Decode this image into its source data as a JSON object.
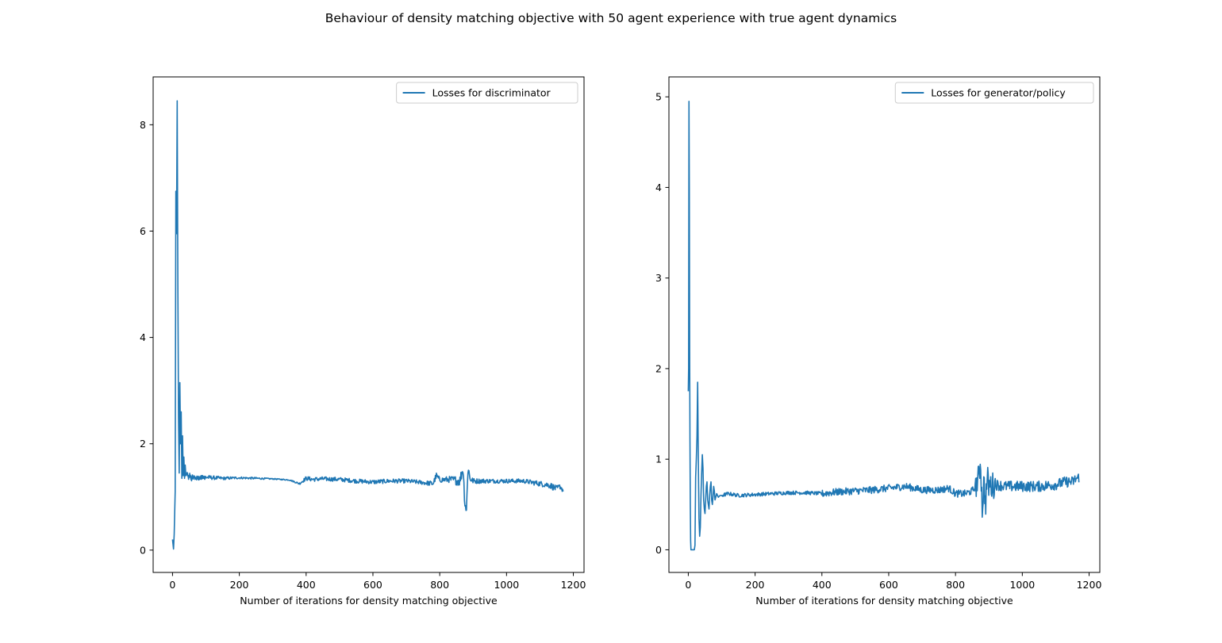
{
  "figure": {
    "suptitle": "Behaviour of density matching objective with 50 agent experience with true agent dynamics"
  },
  "colors": {
    "line": "#1f77b4",
    "axes": "#000000",
    "background": "#ffffff"
  },
  "chart_data": [
    {
      "type": "line",
      "title": "",
      "xlabel": "Number of iterations for density matching objective",
      "ylabel": "",
      "xlim": [
        -58,
        1232
      ],
      "ylim": [
        -0.42,
        8.9
      ],
      "xticks": [
        0,
        200,
        400,
        600,
        800,
        1000,
        1200
      ],
      "yticks": [
        0,
        2,
        4,
        6,
        8
      ],
      "grid": false,
      "legend_position": "top-right",
      "series": [
        {
          "name": "Losses for discriminator",
          "color": "#1f77b4",
          "noisy_base": 1.33,
          "x": [
            0,
            3,
            5,
            8,
            10,
            12,
            14,
            16,
            18,
            20,
            22,
            24,
            26,
            28,
            30,
            32,
            34,
            36,
            38,
            40,
            44,
            48,
            52,
            56,
            60,
            70,
            80,
            100,
            150,
            200,
            250,
            300,
            350,
            380,
            400,
            420,
            450,
            500,
            550,
            600,
            650,
            700,
            750,
            780,
            790,
            800,
            830,
            860,
            870,
            875,
            880,
            885,
            890,
            900,
            950,
            1000,
            1050,
            1100,
            1130,
            1150,
            1160,
            1170
          ],
          "y": [
            0.2,
            0.02,
            0.3,
            1.1,
            6.75,
            5.95,
            8.45,
            5.0,
            2.5,
            1.45,
            3.15,
            2.0,
            2.6,
            1.35,
            2.15,
            1.4,
            1.75,
            1.35,
            1.6,
            1.4,
            1.45,
            1.35,
            1.42,
            1.33,
            1.38,
            1.35,
            1.36,
            1.37,
            1.35,
            1.36,
            1.35,
            1.34,
            1.32,
            1.25,
            1.35,
            1.33,
            1.34,
            1.33,
            1.3,
            1.28,
            1.3,
            1.3,
            1.27,
            1.25,
            1.4,
            1.32,
            1.33,
            1.3,
            1.55,
            0.9,
            0.75,
            1.6,
            1.35,
            1.3,
            1.3,
            1.3,
            1.3,
            1.25,
            1.22,
            1.15,
            1.2,
            1.12
          ],
          "amplitude": [
            0,
            0,
            0,
            0,
            0,
            0,
            0,
            0,
            0,
            0,
            0,
            0,
            0,
            0,
            0,
            0,
            0,
            0,
            0,
            0,
            0.03,
            0.03,
            0.04,
            0.04,
            0.04,
            0.04,
            0.04,
            0.04,
            0.03,
            0.02,
            0.02,
            0.01,
            0.01,
            0.02,
            0.04,
            0.04,
            0.04,
            0.04,
            0.04,
            0.04,
            0.04,
            0.04,
            0.04,
            0.05,
            0.06,
            0.05,
            0.06,
            0.1,
            0.12,
            0.1,
            0.1,
            0.1,
            0.08,
            0.05,
            0.04,
            0.04,
            0.04,
            0.05,
            0.06,
            0.06,
            0.05,
            0.05
          ]
        }
      ]
    },
    {
      "type": "line",
      "title": "",
      "xlabel": "Number of iterations for density matching objective",
      "ylabel": "",
      "xlim": [
        -58,
        1232
      ],
      "ylim": [
        -0.25,
        5.22
      ],
      "xticks": [
        0,
        200,
        400,
        600,
        800,
        1000,
        1200
      ],
      "yticks": [
        0,
        1,
        2,
        3,
        4,
        5
      ],
      "grid": false,
      "legend_position": "top-right",
      "series": [
        {
          "name": "Losses for generator/policy",
          "color": "#1f77b4",
          "x": [
            0,
            1,
            2,
            3,
            4,
            5,
            6,
            7,
            8,
            10,
            14,
            18,
            20,
            22,
            24,
            26,
            28,
            30,
            32,
            34,
            36,
            38,
            40,
            42,
            44,
            46,
            48,
            50,
            52,
            54,
            56,
            58,
            60,
            62,
            64,
            66,
            68,
            70,
            72,
            74,
            76,
            78,
            80,
            85,
            90,
            95,
            100,
            120,
            150,
            200,
            250,
            300,
            350,
            400,
            450,
            500,
            550,
            600,
            650,
            700,
            750,
            780,
            800,
            830,
            850,
            860,
            870,
            875,
            880,
            885,
            890,
            895,
            900,
            920,
            950,
            1000,
            1050,
            1100,
            1130,
            1150,
            1160,
            1170
          ],
          "y": [
            1.75,
            2.0,
            4.95,
            4.0,
            2.2,
            1.2,
            0.5,
            0.1,
            0.0,
            0.0,
            0.0,
            0.0,
            0.05,
            0.8,
            1.0,
            1.25,
            1.85,
            1.0,
            0.35,
            0.15,
            0.25,
            0.6,
            0.85,
            1.05,
            0.9,
            0.55,
            0.45,
            0.4,
            0.55,
            0.7,
            0.75,
            0.55,
            0.5,
            0.45,
            0.6,
            0.7,
            0.75,
            0.55,
            0.5,
            0.58,
            0.7,
            0.65,
            0.55,
            0.62,
            0.58,
            0.6,
            0.6,
            0.62,
            0.6,
            0.61,
            0.62,
            0.63,
            0.63,
            0.62,
            0.64,
            0.65,
            0.66,
            0.68,
            0.7,
            0.66,
            0.66,
            0.68,
            0.62,
            0.62,
            0.65,
            0.7,
            0.8,
            1.0,
            0.45,
            0.75,
            0.5,
            0.8,
            0.7,
            0.72,
            0.7,
            0.7,
            0.7,
            0.72,
            0.75,
            0.75,
            0.78,
            0.8
          ]
        }
      ]
    }
  ]
}
